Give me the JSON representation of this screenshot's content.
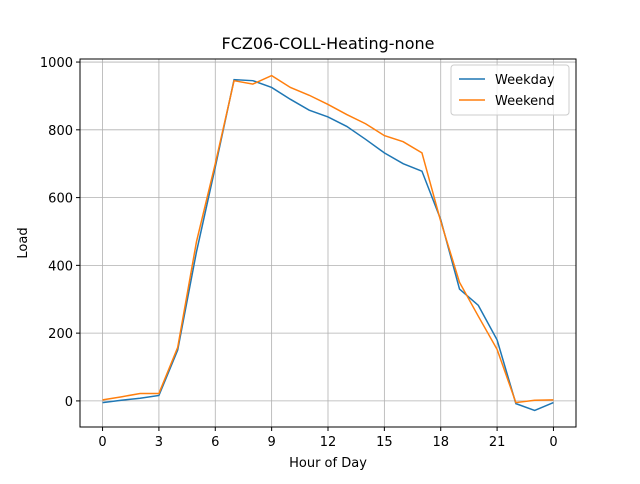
{
  "chart_data": {
    "type": "line",
    "title": "FCZ06-COLL-Heating-none",
    "x_label": "Hour of Day",
    "y_label": "Load",
    "x": [
      0,
      1,
      2,
      3,
      4,
      5,
      6,
      7,
      8,
      9,
      10,
      11,
      12,
      13,
      14,
      15,
      16,
      17,
      18,
      19,
      20,
      21,
      22,
      23,
      24
    ],
    "series": [
      {
        "name": "Weekday",
        "color": "#1f77b4",
        "values": [
          -5,
          2,
          8,
          16,
          150,
          440,
          690,
          948,
          945,
          925,
          890,
          858,
          838,
          810,
          772,
          732,
          700,
          678,
          535,
          330,
          282,
          180,
          -8,
          -28,
          -5
        ]
      },
      {
        "name": "Weekend",
        "color": "#ff7f0e",
        "values": [
          3,
          12,
          22,
          22,
          158,
          470,
          700,
          945,
          935,
          960,
          925,
          902,
          875,
          845,
          818,
          783,
          765,
          732,
          530,
          350,
          250,
          152,
          -5,
          2,
          3
        ]
      }
    ],
    "xlim": [
      -1.2,
      25.2
    ],
    "ylim": [
      -77,
      1009
    ],
    "xticks": [
      0,
      3,
      6,
      9,
      12,
      15,
      18,
      21,
      {
        "value": 24,
        "label": "0"
      }
    ],
    "yticks": [
      0,
      200,
      400,
      600,
      800,
      1000
    ],
    "grid": true,
    "legend": "upper right"
  }
}
